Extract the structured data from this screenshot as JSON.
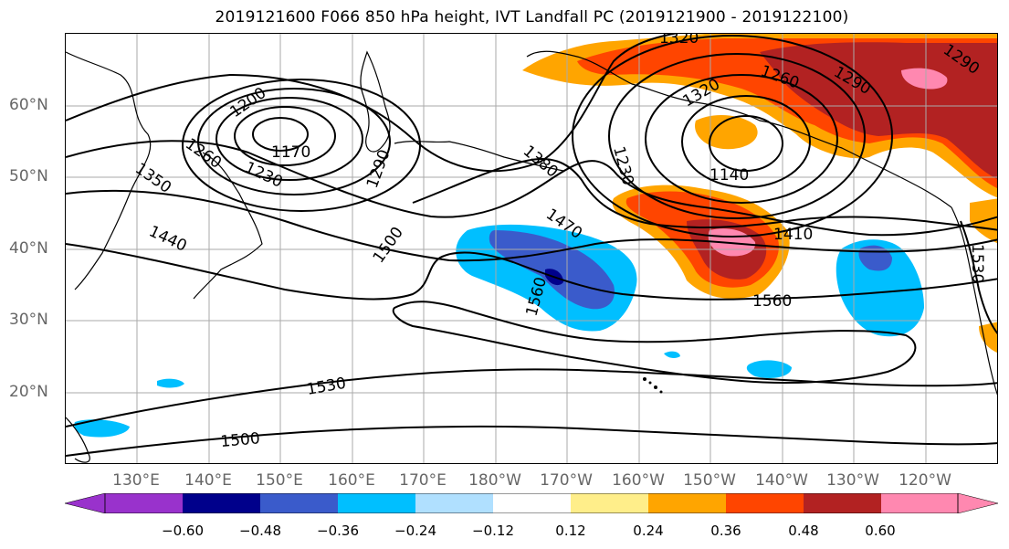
{
  "title": "2019121600 F066 850 hPa height, IVT Landfall PC (2019121900 - 2019122100)",
  "lat_labels": [
    "60°N",
    "50°N",
    "40°N",
    "30°N",
    "20°N"
  ],
  "lon_labels": [
    "130°E",
    "140°E",
    "150°E",
    "160°E",
    "170°E",
    "180°W",
    "170°W",
    "160°W",
    "150°W",
    "140°W",
    "130°W",
    "120°W"
  ],
  "colorbar": {
    "colors": [
      "#9932CC",
      "#00008B",
      "#3A5BCB",
      "#00BFFF",
      "#B0E0FF",
      "#FFFFFF",
      "#FFEE8A",
      "#FFA500",
      "#FF4500",
      "#B22222",
      "#FF88B0"
    ],
    "tick_labels": [
      "−0.60",
      "−0.48",
      "−0.36",
      "−0.24",
      "−0.12",
      "0.12",
      "0.24",
      "0.36",
      "0.48",
      "0.60"
    ]
  },
  "contour_labels": [
    {
      "id": "c1320a",
      "text": "1320"
    },
    {
      "id": "c1200",
      "text": "1200"
    },
    {
      "id": "c1170",
      "text": "1170"
    },
    {
      "id": "c1260a",
      "text": "1260"
    },
    {
      "id": "c1230a",
      "text": "1230"
    },
    {
      "id": "c1350",
      "text": "1350"
    },
    {
      "id": "c1290a",
      "text": "1290"
    },
    {
      "id": "c1440",
      "text": "1440"
    },
    {
      "id": "c1500a",
      "text": "1500"
    },
    {
      "id": "c1380",
      "text": "1380"
    },
    {
      "id": "c1230b",
      "text": "1230"
    },
    {
      "id": "c1470",
      "text": "1470"
    },
    {
      "id": "c1560a",
      "text": "1560"
    },
    {
      "id": "c1140",
      "text": "1140"
    },
    {
      "id": "c1410",
      "text": "1410"
    },
    {
      "id": "c1560b",
      "text": "1560"
    },
    {
      "id": "c1320b",
      "text": "1320"
    },
    {
      "id": "c1260b",
      "text": "1260"
    },
    {
      "id": "c1290b",
      "text": "1290"
    },
    {
      "id": "c1290c",
      "text": "1290"
    },
    {
      "id": "c1530a",
      "text": "1530"
    },
    {
      "id": "c1530b",
      "text": "1530"
    },
    {
      "id": "c1500b",
      "text": "1500"
    }
  ]
}
